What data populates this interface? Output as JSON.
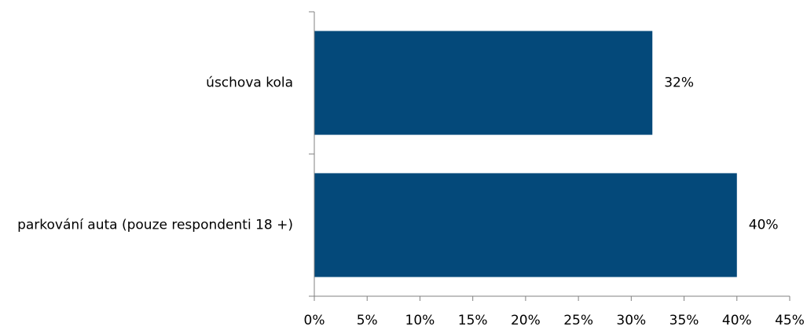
{
  "chart_data": {
    "type": "bar",
    "orientation": "horizontal",
    "categories": [
      "úschova kola",
      "parkování auta (pouze respondenti 18 +)"
    ],
    "values": [
      32,
      40
    ],
    "value_labels": [
      "32%",
      "40%"
    ],
    "xlim": [
      0,
      45
    ],
    "x_ticks": [
      0,
      5,
      10,
      15,
      20,
      25,
      30,
      35,
      40,
      45
    ],
    "x_tick_labels": [
      "0%",
      "5%",
      "10%",
      "15%",
      "20%",
      "25%",
      "30%",
      "35%",
      "40%",
      "45%"
    ],
    "bar_color": "#04497a",
    "grid": false,
    "legend": "none"
  }
}
